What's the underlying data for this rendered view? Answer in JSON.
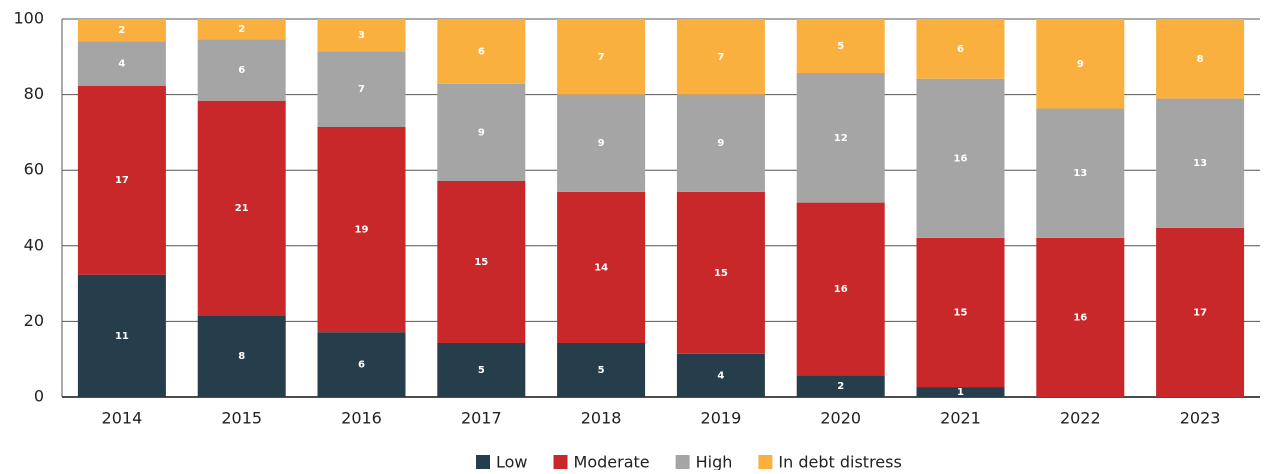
{
  "chart_data": {
    "type": "bar",
    "stacked": "percent",
    "categories": [
      "2014",
      "2015",
      "2016",
      "2017",
      "2018",
      "2019",
      "2020",
      "2021",
      "2022",
      "2023"
    ],
    "series": [
      {
        "name": "Low",
        "color": "#263d4b",
        "values": [
          11,
          8,
          6,
          5,
          5,
          4,
          2,
          1,
          0,
          0
        ]
      },
      {
        "name": "Moderate",
        "color": "#c9282a",
        "values": [
          17,
          21,
          19,
          15,
          14,
          15,
          16,
          15,
          16,
          17
        ]
      },
      {
        "name": "High",
        "color": "#a5a5a5",
        "values": [
          4,
          6,
          7,
          9,
          9,
          9,
          12,
          16,
          13,
          13
        ]
      },
      {
        "name": "In debt distress",
        "color": "#f9b03f",
        "values": [
          2,
          2,
          3,
          6,
          7,
          7,
          5,
          6,
          9,
          8
        ]
      }
    ],
    "ylim": [
      0,
      100
    ],
    "yticks": [
      0,
      20,
      40,
      60,
      80,
      100
    ],
    "grid": true,
    "legend": "bottom"
  }
}
